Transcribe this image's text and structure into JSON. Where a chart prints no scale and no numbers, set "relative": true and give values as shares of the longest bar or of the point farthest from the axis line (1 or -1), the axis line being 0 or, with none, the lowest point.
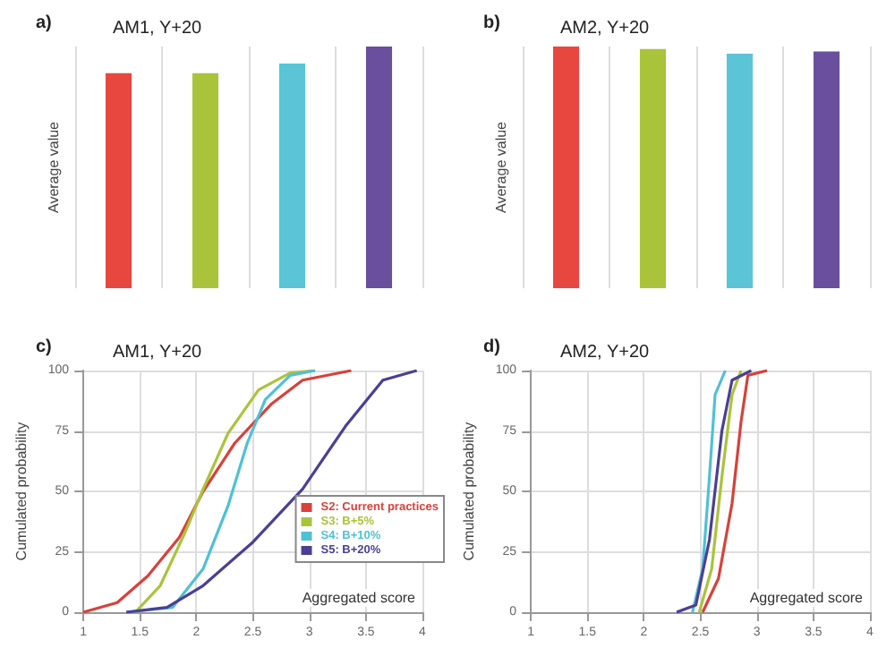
{
  "chart_data": [
    {
      "type": "bar",
      "title": "AM1, Y+20",
      "annotations": [
        "a)"
      ],
      "ylabel": "Average value",
      "relative": true,
      "grid": "x",
      "categories": [
        null,
        null,
        null,
        null
      ],
      "values": [
        0.89,
        0.89,
        0.93,
        1
      ],
      "colors": [
        "#e8473f",
        "#a9c43b",
        "#5bc4d6",
        "#6a4f9e"
      ]
    },
    {
      "type": "bar",
      "title": "AM2, Y+20",
      "annotations": [
        "b)"
      ],
      "ylabel": "Average value",
      "relative": true,
      "grid": "x",
      "categories": [
        null,
        null,
        null,
        null
      ],
      "values": [
        1,
        0.99,
        0.97,
        0.98
      ],
      "colors": [
        "#e8473f",
        "#a9c43b",
        "#5bc4d6",
        "#6a4f9e"
      ]
    },
    {
      "type": "line",
      "title": "AM1, Y+20",
      "annotations": [
        "c)"
      ],
      "xlabel": "Aggregated score",
      "ylabel": "Cumulated probability",
      "grid": true,
      "legend": "right",
      "marker": "none",
      "xlim": [
        1,
        4
      ],
      "xticks": [
        1,
        1.5,
        2,
        2.5,
        3,
        3.5,
        4
      ],
      "ylim": [
        0,
        100
      ],
      "yticks": [
        0,
        25,
        50,
        75,
        100
      ],
      "series": [
        {
          "name": "S2: Current practices",
          "color": "#d9413a",
          "x": [
            1.0,
            1.3,
            1.57,
            1.85,
            2.06,
            2.34,
            2.66,
            2.94,
            3.37
          ],
          "values": [
            0,
            4,
            15,
            31,
            50,
            70,
            86,
            96,
            100
          ]
        },
        {
          "name": "S3: B+5%",
          "color": "#a9c43b",
          "x": [
            1.46,
            1.68,
            1.9,
            2.06,
            2.28,
            2.55,
            2.83,
            3.05
          ],
          "values": [
            0,
            11,
            33,
            51,
            74,
            92,
            99,
            100
          ]
        },
        {
          "name": "S4: B+10%",
          "color": "#4fc0d6",
          "x": [
            1.38,
            1.79,
            2.06,
            2.28,
            2.45,
            2.61,
            2.83,
            3.05
          ],
          "values": [
            0,
            2,
            18,
            44,
            70,
            88,
            98,
            100
          ]
        },
        {
          "name": "S5: B+20%",
          "color": "#4b3f94",
          "x": [
            1.38,
            1.74,
            2.06,
            2.5,
            2.94,
            3.32,
            3.65,
            3.95
          ],
          "values": [
            0,
            2,
            11,
            29,
            51,
            77,
            96,
            100
          ]
        }
      ]
    },
    {
      "type": "line",
      "title": "AM2, Y+20",
      "annotations": [
        "d)"
      ],
      "xlabel": "Aggregated score",
      "ylabel": "Cumulated probability",
      "grid": true,
      "marker": "none",
      "xlim": [
        1,
        4
      ],
      "xticks": [
        1,
        1.5,
        2,
        2.5,
        3,
        3.5,
        4
      ],
      "ylim": [
        0,
        100
      ],
      "yticks": [
        0,
        25,
        50,
        75,
        100
      ],
      "series": [
        {
          "color": "#d9413a",
          "x": [
            2.52,
            2.66,
            2.78,
            2.86,
            2.92,
            3.09
          ],
          "values": [
            0,
            14,
            45,
            79,
            98,
            100
          ]
        },
        {
          "color": "#a9c43b",
          "x": [
            2.49,
            2.6,
            2.69,
            2.78,
            2.86
          ],
          "values": [
            0,
            18,
            56,
            90,
            100
          ]
        },
        {
          "color": "#4fc0d6",
          "x": [
            2.43,
            2.52,
            2.58,
            2.63,
            2.72
          ],
          "values": [
            0,
            18,
            56,
            90,
            100
          ]
        },
        {
          "color": "#4b3f94",
          "x": [
            2.29,
            2.46,
            2.58,
            2.69,
            2.78,
            2.95
          ],
          "values": [
            0,
            3,
            30,
            75,
            96,
            100
          ]
        }
      ]
    }
  ]
}
